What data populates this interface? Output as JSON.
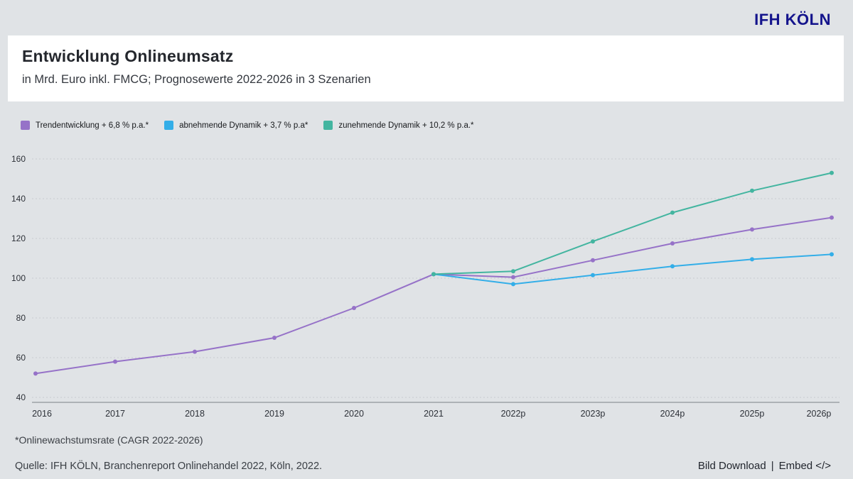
{
  "brand": {
    "logo": "IFH KÖLN",
    "logo_color": "#14148c"
  },
  "header": {
    "title": "Entwicklung Onlineumsatz",
    "subtitle": "in Mrd. Euro inkl. FMCG; Prognosewerte 2022-2026 in 3 Szenarien"
  },
  "legend": [
    {
      "label": "Trendentwicklung + 6,8 % p.a.*",
      "color": "#9672c8"
    },
    {
      "label": "abnehmende Dynamik + 3,7 % p.a*",
      "color": "#33aee8"
    },
    {
      "label": "zunehmende Dynamik + 10,2 % p.a.*",
      "color": "#43b5a0"
    }
  ],
  "chart_data": {
    "type": "line",
    "title": "Entwicklung Onlineumsatz",
    "subtitle": "in Mrd. Euro inkl. FMCG; Prognosewerte 2022-2026 in 3 Szenarien",
    "categories": [
      "2016",
      "2017",
      "2018",
      "2019",
      "2020",
      "2021",
      "2022p",
      "2023p",
      "2024p",
      "2025p",
      "2026p"
    ],
    "series": [
      {
        "name": "Trendentwicklung + 6,8 % p.a.*",
        "color": "#9672c8",
        "values": [
          52,
          58,
          63,
          70,
          85,
          102,
          100.5,
          109,
          117.5,
          124.5,
          130.5
        ]
      },
      {
        "name": "abnehmende Dynamik + 3,7 % p.a*",
        "color": "#33aee8",
        "values": [
          null,
          null,
          null,
          null,
          null,
          102,
          97,
          101.5,
          106,
          109.5,
          112
        ]
      },
      {
        "name": "zunehmende Dynamik + 10,2 % p.a.*",
        "color": "#43b5a0",
        "values": [
          null,
          null,
          null,
          null,
          null,
          102,
          103.5,
          118.5,
          133,
          144,
          153
        ]
      }
    ],
    "xlabel": "",
    "ylabel": "",
    "ylim": [
      40,
      160
    ],
    "yticks": [
      40,
      60,
      80,
      100,
      120,
      140,
      160
    ],
    "grid": "horizontal-dashed",
    "legend_position": "top-left",
    "grid_color": "#c7cbd0",
    "axis_line_color": "#7a8087",
    "tick_label_color": "#2d3138"
  },
  "footnote": "*Onlinewachstumsrate (CAGR 2022-2026)",
  "source": "Quelle: IFH KÖLN, Branchenreport Onlinehandel 2022, Köln, 2022.",
  "actions": {
    "bild_download": "Bild Download",
    "separator": "|",
    "embed": "Embed </>"
  },
  "colors": {
    "background": "#e0e3e6",
    "card": "#ffffff"
  }
}
